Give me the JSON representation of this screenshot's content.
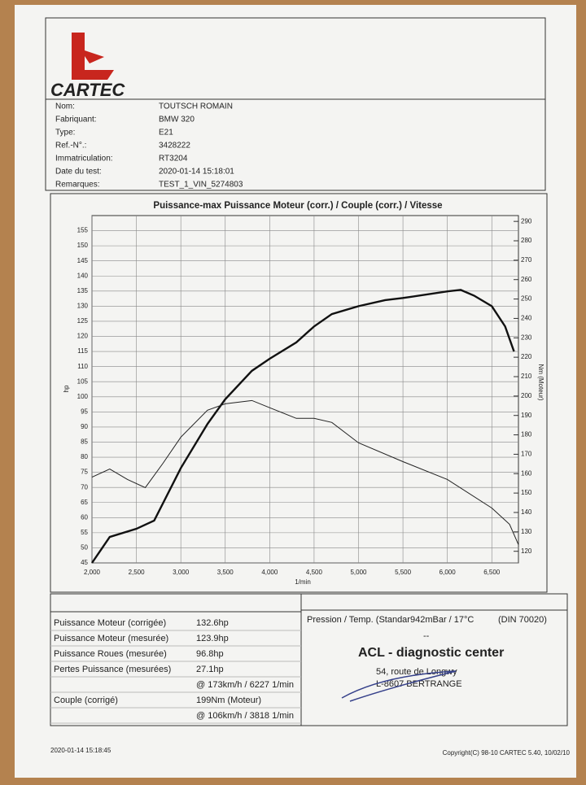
{
  "header": {
    "logo": "CARTEC"
  },
  "info": [
    {
      "label": "Nom:",
      "value": "TOUTSCH ROMAIN"
    },
    {
      "label": "Fabriquant:",
      "value": "BMW 320"
    },
    {
      "label": "Type:",
      "value": "E21"
    },
    {
      "label": "Ref.-N°.:",
      "value": "3428222"
    },
    {
      "label": "Immatriculation:",
      "value": "RT3204"
    },
    {
      "label": "Date du test:",
      "value": "2020-01-14 15:18:01"
    },
    {
      "label": "Remarques:",
      "value": "TEST_1_VIN_5274803"
    }
  ],
  "chart_data": {
    "type": "line",
    "title": "Puissance-max Puissance Moteur (corr.) / Couple (corr.) / Vitesse",
    "x_label": "1/min",
    "y_label": "hp",
    "y2_label": "Nm (Moteur)",
    "xlim": [
      2000,
      6800
    ],
    "xticks": [
      {
        "value": 2000,
        "label": "2,000"
      },
      {
        "value": 2500,
        "label": "2,500"
      },
      {
        "value": 3000,
        "label": "3,000"
      },
      {
        "value": 3500,
        "label": "3,500"
      },
      {
        "value": 4000,
        "label": "4,000"
      },
      {
        "value": 4500,
        "label": "4,500"
      },
      {
        "value": 5000,
        "label": "5,000"
      },
      {
        "value": 5500,
        "label": "5,500"
      },
      {
        "value": 6000,
        "label": "6,000"
      },
      {
        "value": 6500,
        "label": "6,500"
      }
    ],
    "ylim": [
      45,
      160
    ],
    "yticks": [
      45,
      50,
      55,
      60,
      65,
      70,
      75,
      80,
      85,
      90,
      95,
      100,
      105,
      110,
      115,
      120,
      125,
      130,
      135,
      140,
      145,
      150,
      155
    ],
    "y2lim": [
      114,
      293
    ],
    "y2ticks": [
      120,
      130,
      140,
      150,
      160,
      170,
      180,
      190,
      200,
      210,
      220,
      230,
      240,
      250,
      260,
      270,
      280,
      290
    ],
    "grid": true,
    "series": [
      {
        "name": "Puissance Moteur",
        "color": "#111111",
        "x": [
          2000,
          2200,
          2500,
          2700,
          3000,
          3300,
          3500,
          3800,
          4000,
          4300,
          4500,
          4700,
          5000,
          5300,
          5500,
          6000,
          6150,
          6300,
          6500,
          6650,
          6750
        ],
        "values": [
          45,
          53.6,
          56.3,
          59,
          76.4,
          91,
          99.2,
          108.6,
          112.6,
          118,
          123.3,
          127.4,
          130,
          132,
          132.7,
          134.9,
          135.4,
          133.5,
          130,
          123.3,
          115
        ]
      },
      {
        "name": "Couple",
        "color": "#222222",
        "axis": "y2",
        "x": [
          2000,
          2200,
          2400,
          2600,
          2800,
          3000,
          3300,
          3500,
          3800,
          4000,
          4300,
          4500,
          4700,
          5000,
          5500,
          6000,
          6500,
          6700,
          6800
        ],
        "values": [
          158.2,
          162.4,
          157,
          152.8,
          165.4,
          178.8,
          192.7,
          196,
          197.7,
          194,
          188.5,
          188.5,
          186.4,
          175.9,
          166.2,
          157,
          142.3,
          133.9,
          123.4
        ]
      }
    ]
  },
  "results": [
    {
      "label": "Puissance Moteur (corrigée)",
      "value": "132.6hp"
    },
    {
      "label": "Puissance Moteur (mesurée)",
      "value": "123.9hp"
    },
    {
      "label": "Puissance Roues (mesurée)",
      "value": "96.8hp"
    },
    {
      "label": "Pertes Puissance (mesurées)",
      "value": "27.1hp"
    },
    {
      "value": "@ 173km/h / 6227 1/min"
    },
    {
      "label": "Couple (corrigé)",
      "value": "199Nm (Moteur)"
    },
    {
      "value": "@ 106km/h / 3818 1/min"
    }
  ],
  "conditions": {
    "text": "Pression / Temp. (Standar942mBar / 17°C",
    "norm": "(DIN 70020)",
    "dash": "--"
  },
  "stamp": {
    "name": "ACL - diagnostic center",
    "street": "54, route de Longwy",
    "city": "L-8607 BERTRANGE"
  },
  "footer": {
    "timestamp": "2020-01-14 15:18:45",
    "copyright": "Copyright(C) 98-10 CARTEC 5.40, 10/02/10"
  }
}
